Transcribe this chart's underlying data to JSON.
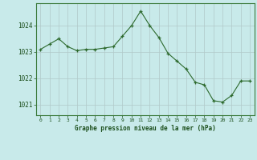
{
  "x": [
    0,
    1,
    2,
    3,
    4,
    5,
    6,
    7,
    8,
    9,
    10,
    11,
    12,
    13,
    14,
    15,
    16,
    17,
    18,
    19,
    20,
    21,
    22,
    23
  ],
  "y": [
    1023.1,
    1023.3,
    1023.5,
    1023.2,
    1023.05,
    1023.1,
    1023.1,
    1023.15,
    1023.2,
    1023.6,
    1024.0,
    1024.55,
    1024.0,
    1023.55,
    1022.95,
    1022.65,
    1022.35,
    1021.85,
    1021.75,
    1021.15,
    1021.1,
    1021.35,
    1021.9,
    1021.9
  ],
  "line_color": "#2d6a2d",
  "marker_color": "#2d6a2d",
  "bg_color": "#c8eaea",
  "grid_color": "#b0c8c8",
  "xlabel": "Graphe pression niveau de la mer (hPa)",
  "xlabel_color": "#1a4d1a",
  "tick_color": "#1a4d1a",
  "ylim": [
    1020.6,
    1024.85
  ],
  "yticks": [
    1021,
    1022,
    1023,
    1024
  ],
  "xticks": [
    0,
    1,
    2,
    3,
    4,
    5,
    6,
    7,
    8,
    9,
    10,
    11,
    12,
    13,
    14,
    15,
    16,
    17,
    18,
    19,
    20,
    21,
    22,
    23
  ],
  "figsize": [
    3.2,
    2.0
  ],
  "dpi": 100
}
